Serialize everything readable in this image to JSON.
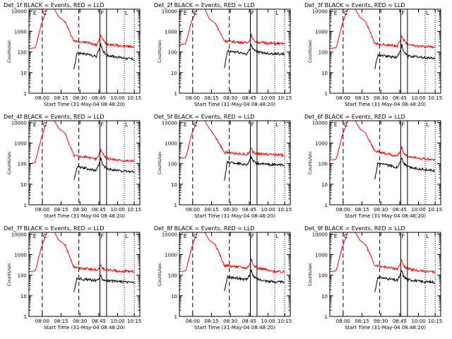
{
  "figure": {
    "xlabel": "Start Time (31-May-04 08:48:20)",
    "ylabel": "Counts/sec",
    "x_ticks": [
      "08:00",
      "08:15",
      "08:30",
      "08:45",
      "10:00",
      "10:15"
    ],
    "y_ticks": [
      "1",
      "10",
      "100",
      "1000",
      "10000"
    ],
    "flag_letters": [
      "E",
      "C",
      "F",
      "L"
    ],
    "colors": {
      "events": "#000000",
      "lld": "#ff0000",
      "frame": "#000000",
      "background": "#ffffff"
    }
  },
  "chart_data": [
    {
      "type": "line",
      "title": "Det_1f BLACK = Events, RED = LLD",
      "xlabel": "Start Time (31-May-04 08:48:20)",
      "ylabel": "Counts/sec",
      "y_scale": "log",
      "ylim": [
        1,
        12000
      ],
      "x_ticks": [
        "08:00",
        "08:15",
        "08:30",
        "08:45",
        "10:00",
        "10:15"
      ],
      "series": [
        {
          "color": "red",
          "x": [
            0,
            4,
            5,
            8,
            12,
            14,
            15,
            17,
            20,
            24,
            30,
            40,
            45,
            47,
            48,
            49,
            52,
            57,
            60,
            70
          ],
          "values": [
            150,
            160,
            250,
            2000,
            12000,
            12000,
            12000,
            12000,
            5000,
            3000,
            350,
            280,
            220,
            380,
            700,
            400,
            250,
            220,
            200,
            180
          ]
        },
        {
          "color": "black",
          "x": [
            30,
            32,
            40,
            45,
            47,
            48,
            49,
            52,
            57,
            60,
            70
          ],
          "values": [
            15,
            90,
            75,
            60,
            150,
            250,
            120,
            70,
            60,
            55,
            45
          ]
        }
      ]
    },
    {
      "type": "line",
      "title": "Det_2f BLACK = Events, RED = LLD",
      "xlabel": "Start Time (31-May-04 08:48:20)",
      "ylabel": "Counts/sec",
      "y_scale": "log",
      "ylim": [
        1,
        12000
      ],
      "x_ticks": [
        "08:00",
        "08:15",
        "08:30",
        "08:45",
        "10:00",
        "10:15"
      ],
      "series": [
        {
          "color": "red",
          "x": [
            0,
            4,
            5,
            8,
            12,
            14,
            15,
            17,
            20,
            24,
            30,
            40,
            45,
            47,
            48,
            49,
            52,
            57,
            60,
            70
          ],
          "values": [
            230,
            250,
            400,
            3000,
            12000,
            12000,
            12000,
            12000,
            4000,
            2500,
            350,
            300,
            280,
            380,
            700,
            400,
            300,
            280,
            270,
            250
          ]
        },
        {
          "color": "black",
          "x": [
            30,
            32,
            40,
            45,
            47,
            48,
            49,
            52,
            57,
            60,
            70
          ],
          "values": [
            15,
            110,
            95,
            80,
            130,
            250,
            150,
            100,
            90,
            85,
            80
          ]
        }
      ]
    },
    {
      "type": "line",
      "title": "Det_3f BLACK = Events, RED = LLD",
      "xlabel": "Start Time (31-May-04 08:48:20)",
      "ylabel": "Counts/sec",
      "y_scale": "log",
      "ylim": [
        1,
        12000
      ],
      "x_ticks": [
        "08:00",
        "08:15",
        "08:30",
        "08:45",
        "10:00",
        "10:15"
      ],
      "series": [
        {
          "color": "red",
          "x": [
            0,
            4,
            5,
            8,
            12,
            14,
            15,
            17,
            20,
            24,
            30,
            40,
            45,
            47,
            48,
            49,
            52,
            57,
            60,
            70
          ],
          "values": [
            150,
            160,
            250,
            2000,
            12000,
            12000,
            12000,
            12000,
            5000,
            3000,
            250,
            220,
            200,
            350,
            650,
            400,
            220,
            200,
            190,
            180
          ]
        },
        {
          "color": "black",
          "x": [
            30,
            32,
            40,
            45,
            47,
            48,
            49,
            52,
            57,
            60,
            70
          ],
          "values": [
            15,
            70,
            60,
            55,
            120,
            220,
            110,
            65,
            60,
            55,
            50
          ]
        }
      ]
    },
    {
      "type": "line",
      "title": "Det_4f BLACK = Events, RED = LLD",
      "xlabel": "Start Time (31-May-04 08:48:20)",
      "ylabel": "Counts/sec",
      "y_scale": "log",
      "ylim": [
        1,
        12000
      ],
      "x_ticks": [
        "08:00",
        "08:15",
        "08:30",
        "08:45",
        "10:00",
        "10:15"
      ],
      "series": [
        {
          "color": "red",
          "x": [
            0,
            4,
            5,
            8,
            12,
            14,
            15,
            17,
            20,
            24,
            30,
            40,
            45,
            47,
            48,
            49,
            52,
            57,
            60,
            70
          ],
          "values": [
            100,
            110,
            200,
            1500,
            12000,
            12000,
            12000,
            12000,
            5000,
            3000,
            250,
            200,
            170,
            300,
            500,
            300,
            180,
            160,
            150,
            130
          ]
        },
        {
          "color": "black",
          "x": [
            30,
            32,
            40,
            45,
            47,
            48,
            49,
            52,
            57,
            60,
            70
          ],
          "values": [
            15,
            70,
            55,
            45,
            100,
            180,
            90,
            55,
            50,
            45,
            40
          ]
        }
      ]
    },
    {
      "type": "line",
      "title": "Det_5f BLACK = Events, RED = LLD",
      "xlabel": "Start Time (31-May-04 08:48:20)",
      "ylabel": "Counts/sec",
      "y_scale": "log",
      "ylim": [
        1,
        12000
      ],
      "x_ticks": [
        "08:00",
        "08:15",
        "08:30",
        "08:45",
        "10:00",
        "10:15"
      ],
      "series": [
        {
          "color": "red",
          "x": [
            0,
            4,
            5,
            8,
            12,
            14,
            15,
            17,
            20,
            24,
            30,
            40,
            45,
            47,
            48,
            49,
            52,
            57,
            60,
            70
          ],
          "values": [
            180,
            190,
            300,
            2500,
            12000,
            12000,
            12000,
            12000,
            5000,
            2000,
            350,
            300,
            280,
            380,
            600,
            350,
            300,
            290,
            280,
            260
          ]
        },
        {
          "color": "black",
          "x": [
            30,
            32,
            40,
            45,
            47,
            48,
            49,
            52,
            57,
            60,
            70
          ],
          "values": [
            15,
            120,
            100,
            90,
            140,
            220,
            130,
            100,
            95,
            90,
            85
          ]
        }
      ]
    },
    {
      "type": "line",
      "title": "Det_6f BLACK = Events, RED = LLD",
      "xlabel": "Start Time (31-May-04 08:48:20)",
      "ylabel": "Counts/sec",
      "y_scale": "log",
      "ylim": [
        1,
        12000
      ],
      "x_ticks": [
        "08:00",
        "08:15",
        "08:30",
        "08:45",
        "10:00",
        "10:15"
      ],
      "series": [
        {
          "color": "red",
          "x": [
            0,
            4,
            5,
            8,
            12,
            14,
            15,
            17,
            20,
            24,
            30,
            40,
            45,
            47,
            48,
            49,
            52,
            57,
            60,
            70
          ],
          "values": [
            150,
            160,
            250,
            2000,
            12000,
            12000,
            12000,
            12000,
            5000,
            3000,
            400,
            280,
            230,
            400,
            650,
            350,
            220,
            200,
            180,
            150
          ]
        },
        {
          "color": "black",
          "x": [
            30,
            32,
            40,
            45,
            47,
            48,
            49,
            52,
            57,
            60,
            70
          ],
          "values": [
            15,
            100,
            80,
            65,
            120,
            200,
            110,
            70,
            60,
            55,
            45
          ]
        }
      ]
    },
    {
      "type": "line",
      "title": "Det_7f BLACK = Events, RED = LLD",
      "xlabel": "Start Time (31-May-04 08:48:20)",
      "ylabel": "Counts/sec",
      "y_scale": "log",
      "ylim": [
        1,
        12000
      ],
      "x_ticks": [
        "08:00",
        "08:15",
        "08:30",
        "08:45",
        "10:00",
        "10:15"
      ],
      "series": [
        {
          "color": "red",
          "x": [
            0,
            4,
            5,
            8,
            12,
            14,
            15,
            17,
            20,
            24,
            30,
            40,
            45,
            47,
            48,
            49,
            52,
            57,
            60,
            70
          ],
          "values": [
            150,
            160,
            250,
            2000,
            12000,
            12000,
            12000,
            12000,
            5000,
            3000,
            250,
            200,
            180,
            220,
            350,
            220,
            180,
            170,
            160,
            150
          ]
        },
        {
          "color": "black",
          "x": [
            30,
            32,
            40,
            45,
            47,
            48,
            49,
            52,
            57,
            60,
            70
          ],
          "values": [
            15,
            70,
            60,
            55,
            70,
            90,
            65,
            55,
            50,
            50,
            45
          ]
        }
      ]
    },
    {
      "type": "line",
      "title": "Det_8f BLACK = Events, RED = LLD",
      "xlabel": "Start Time (31-May-04 08:48:20)",
      "ylabel": "Counts/sec",
      "y_scale": "log",
      "ylim": [
        1,
        12000
      ],
      "x_ticks": [
        "08:00",
        "08:15",
        "08:30",
        "08:45",
        "10:00",
        "10:15"
      ],
      "series": [
        {
          "color": "red",
          "x": [
            0,
            4,
            5,
            8,
            12,
            14,
            15,
            17,
            20,
            24,
            30,
            40,
            45,
            47,
            48,
            49,
            52,
            57,
            60,
            70
          ],
          "values": [
            150,
            160,
            250,
            2000,
            12000,
            12000,
            12000,
            12000,
            5000,
            3000,
            300,
            250,
            220,
            350,
            600,
            350,
            220,
            200,
            160,
            140
          ]
        },
        {
          "color": "black",
          "x": [
            30,
            32,
            40,
            45,
            47,
            48,
            49,
            52,
            57,
            60,
            70
          ],
          "values": [
            15,
            80,
            70,
            60,
            110,
            180,
            90,
            65,
            55,
            50,
            45
          ]
        }
      ]
    },
    {
      "type": "line",
      "title": "Det_9f BLACK = Events, RED = LLD",
      "xlabel": "Start Time (31-May-04 08:48:20)",
      "ylabel": "Counts/sec",
      "y_scale": "log",
      "ylim": [
        1,
        12000
      ],
      "x_ticks": [
        "08:00",
        "08:15",
        "08:30",
        "08:45",
        "10:00",
        "10:15"
      ],
      "series": [
        {
          "color": "red",
          "x": [
            0,
            4,
            5,
            8,
            12,
            14,
            15,
            17,
            20,
            24,
            30,
            40,
            45,
            47,
            48,
            49,
            52,
            57,
            60,
            70
          ],
          "values": [
            150,
            160,
            250,
            2000,
            12000,
            12000,
            12000,
            12000,
            5000,
            3000,
            300,
            230,
            200,
            350,
            600,
            300,
            200,
            180,
            160,
            140
          ]
        },
        {
          "color": "black",
          "x": [
            30,
            32,
            40,
            45,
            47,
            48,
            49,
            52,
            57,
            60,
            70
          ],
          "values": [
            15,
            80,
            65,
            55,
            100,
            170,
            90,
            60,
            55,
            50,
            45
          ]
        }
      ]
    }
  ]
}
